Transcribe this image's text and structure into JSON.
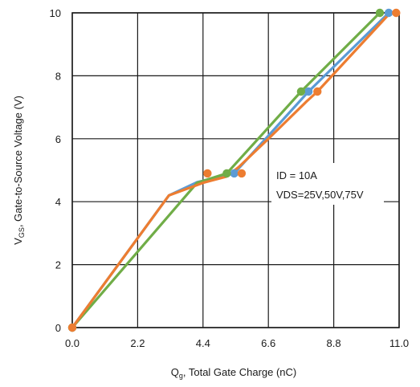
{
  "chart_data": {
    "type": "line",
    "xlabel_main": "Q",
    "xlabel_sub": "g",
    "xlabel_rest": ", Total Gate Charge (nC)",
    "ylabel_main": "V",
    "ylabel_sub": "GS",
    "ylabel_rest": ", Gate-to-Source Voltage (V)",
    "xlim": [
      0,
      11
    ],
    "ylim": [
      0,
      10
    ],
    "x_ticks": [
      0,
      2.2,
      4.4,
      6.6,
      8.8,
      11
    ],
    "x_tick_labels": [
      "0.0",
      "2.2",
      "4.4",
      "6.6",
      "8.8",
      "11.0"
    ],
    "y_ticks": [
      0,
      2,
      4,
      6,
      8,
      10
    ],
    "y_tick_labels": [
      "0",
      "2",
      "4",
      "6",
      "8",
      "10"
    ],
    "grid": true,
    "annotations": {
      "line1": "ID = 10A",
      "line2": "VDS=25V,50V,75V"
    },
    "series": [
      {
        "color": "#5b9bd5",
        "x": [
          0,
          3.25,
          4.2,
          5.45,
          7.95,
          10.65
        ],
        "y": [
          0,
          4.2,
          4.62,
          4.9,
          7.5,
          10
        ],
        "markers": [
          [
            0,
            0
          ],
          [
            5.45,
            4.9
          ],
          [
            7.95,
            7.5
          ],
          [
            10.65,
            10
          ]
        ]
      },
      {
        "color": "#70ad47",
        "x": [
          0,
          4.2,
          5.2,
          7.7,
          10.35
        ],
        "y": [
          0,
          4.6,
          4.9,
          7.5,
          10
        ],
        "markers": [
          [
            0,
            0
          ],
          [
            5.2,
            4.9
          ],
          [
            7.7,
            7.5
          ],
          [
            10.35,
            10
          ]
        ]
      },
      {
        "color": "#ed7d31",
        "x": [
          0,
          3.25,
          4.4,
          5.2,
          5.6,
          6.6,
          7.9,
          8.25,
          10.7
        ],
        "y": [
          0,
          4.2,
          4.6,
          4.8,
          5.1,
          6.0,
          7.2,
          7.5,
          10
        ],
        "markers": [
          [
            0,
            0
          ],
          [
            4.55,
            4.9
          ],
          [
            5.7,
            4.9
          ],
          [
            8.25,
            7.5
          ],
          [
            10.9,
            10
          ]
        ]
      }
    ]
  }
}
